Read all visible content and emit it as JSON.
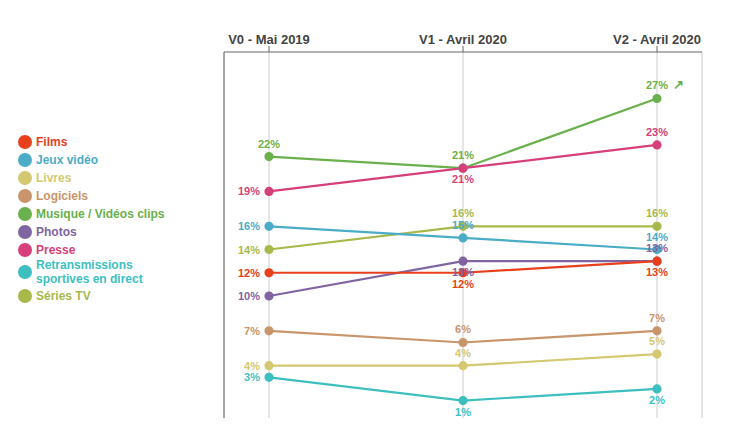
{
  "chart_data": {
    "type": "line",
    "categories": [
      "V0 - Mai 2019",
      "V1 - Avril 2020",
      "V2 - Avril 2020"
    ],
    "series": [
      {
        "name": "Musique / Vidéos clips",
        "color": "#6ab04c",
        "values": [
          22,
          21,
          27
        ],
        "value_labels": [
          "22%",
          "21%",
          "27%"
        ]
      },
      {
        "name": "Presse",
        "color": "#d63f7a",
        "values": [
          19,
          21,
          23
        ],
        "value_labels": [
          "19%",
          "21%",
          "23%"
        ]
      },
      {
        "name": "Séries TV",
        "color": "#a8b84b",
        "values": [
          14,
          16,
          16
        ],
        "value_labels": [
          "14%",
          "16%",
          "16%"
        ]
      },
      {
        "name": "Jeux vidéo",
        "color": "#4bacc6",
        "values": [
          16,
          15,
          14
        ],
        "value_labels": [
          "16%",
          "15%",
          "14%"
        ]
      },
      {
        "name": "Photos",
        "color": "#8064a2",
        "values": [
          10,
          13,
          13
        ],
        "value_labels": [
          "10%",
          "13%",
          "13%"
        ]
      },
      {
        "name": "Films",
        "color": "#e8401c",
        "values": [
          12,
          12,
          13
        ],
        "value_labels": [
          "12%",
          "12%",
          "13%"
        ]
      },
      {
        "name": "Logiciels",
        "color": "#c9956a",
        "values": [
          7,
          6,
          7
        ],
        "value_labels": [
          "7%",
          "6%",
          "7%"
        ]
      },
      {
        "name": "Livres",
        "color": "#d4c870",
        "values": [
          4,
          4,
          5
        ],
        "value_labels": [
          "4%",
          "4%",
          "5%"
        ]
      },
      {
        "name": "Retransmissions\nsportives en direct",
        "color": "#3dbfbf",
        "values": [
          3,
          1,
          2
        ],
        "value_labels": [
          "3%",
          "1%",
          "2%"
        ]
      }
    ],
    "ylim": [
      -0.5,
      31
    ],
    "grid": true,
    "legend": "left",
    "data_labels": true,
    "tick_labels": "x",
    "marker": "circle",
    "annotations": [
      {
        "text": "↗",
        "series": "Musique / Vidéos clips"
      }
    ]
  }
}
